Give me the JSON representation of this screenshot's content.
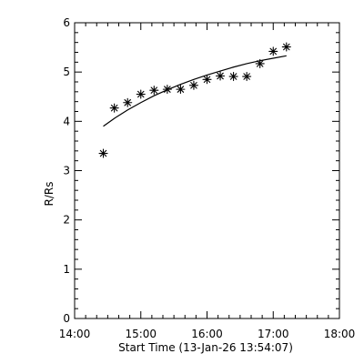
{
  "chart_data": {
    "type": "scatter",
    "xlabel": "Start Time (13-Jan-26 13:54:07)",
    "ylabel": "R/Rs",
    "xlim": [
      "14:00",
      "18:00"
    ],
    "ylim": [
      0,
      6
    ],
    "x_ticks": [
      "14:00",
      "15:00",
      "16:00",
      "17:00",
      "18:00"
    ],
    "y_ticks": [
      0,
      1,
      2,
      3,
      4,
      5,
      6
    ],
    "grid": false,
    "series": [
      {
        "kind": "points",
        "marker": "asterisk",
        "color": "#000000",
        "x": [
          "14:26",
          "14:36",
          "14:48",
          "15:00",
          "15:12",
          "15:24",
          "15:36",
          "15:48",
          "16:00",
          "16:12",
          "16:24",
          "16:36",
          "16:48",
          "17:00",
          "17:12"
        ],
        "y": [
          3.35,
          4.27,
          4.38,
          4.55,
          4.63,
          4.65,
          4.65,
          4.73,
          4.85,
          4.92,
          4.91,
          4.91,
          5.17,
          5.42,
          5.51
        ]
      },
      {
        "kind": "fit-line",
        "color": "#000000",
        "x": [
          "14:26",
          "14:36",
          "14:48",
          "15:00",
          "15:12",
          "15:24",
          "15:36",
          "15:48",
          "16:00",
          "16:12",
          "16:24",
          "16:36",
          "16:48",
          "17:00",
          "17:12"
        ],
        "y": [
          3.9,
          4.06,
          4.23,
          4.38,
          4.52,
          4.64,
          4.75,
          4.85,
          4.94,
          5.02,
          5.1,
          5.17,
          5.23,
          5.28,
          5.33
        ]
      }
    ]
  }
}
